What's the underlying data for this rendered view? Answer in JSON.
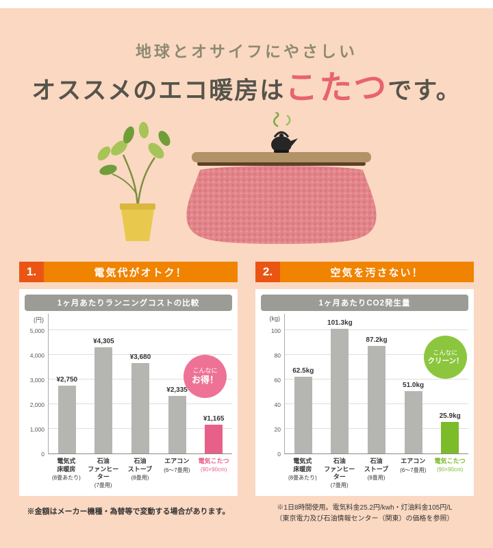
{
  "header": {
    "subtitle": "地球とオサイフにやさしい",
    "title_prefix": "オススメのエコ暖房は",
    "title_accent": "こたつ",
    "title_suffix": "です。"
  },
  "sections": [
    {
      "number": "1.",
      "title": "電気代がオトク！"
    },
    {
      "number": "2.",
      "title": "空気を汚さない！"
    }
  ],
  "colors": {
    "background": "#fbd8c2",
    "section_bar_orange": "#f08300",
    "section_number_red": "#ea5514",
    "title_accent_pink": "#e8636f",
    "chart_header_gray": "#9c9c96"
  },
  "chart_data": [
    {
      "type": "bar",
      "title": "1ヶ月あたりランニングコストの比較",
      "unit": "(円)",
      "ylim": [
        0,
        5000
      ],
      "yticks": [
        0,
        1000,
        2000,
        3000,
        4000,
        5000
      ],
      "ytick_labels": [
        "0",
        "1,000",
        "2,000",
        "3,000",
        "4,000",
        "5,000"
      ],
      "categories": [
        "電気式床暖房",
        "石油ファンヒーター",
        "石油ストーブ",
        "エアコン",
        "電気こたつ"
      ],
      "category_lines": [
        [
          "電気式",
          "床暖房"
        ],
        [
          "石油",
          "ファンヒーター"
        ],
        [
          "石油",
          "ストーブ"
        ],
        [
          "エアコン"
        ],
        [
          "電気こたつ"
        ]
      ],
      "sublabels": [
        "(8畳あたり)",
        "(7畳用)",
        "(8畳用)",
        "(6〜7畳用)",
        "(90×90cm)"
      ],
      "values": [
        2750,
        4305,
        3680,
        2335,
        1165
      ],
      "value_labels": [
        "¥2,750",
        "¥4,305",
        "¥3,680",
        "¥2,335",
        "¥1,165"
      ],
      "bar_color": "#b5b5b2",
      "highlight_index": 4,
      "highlight_color": "#e7608a",
      "badge": {
        "line1": "こんなに",
        "line2": "お得！",
        "color": "#ee7296"
      },
      "legend_position": "none",
      "grid": true
    },
    {
      "type": "bar",
      "title": "1ヶ月あたりCO2発生量",
      "unit": "(kg)",
      "ylim": [
        0,
        100
      ],
      "yticks": [
        0,
        20,
        40,
        60,
        80,
        100
      ],
      "ytick_labels": [
        "0",
        "20",
        "40",
        "60",
        "80",
        "100"
      ],
      "categories": [
        "電気式床暖房",
        "石油ファンヒーター",
        "石油ストーブ",
        "エアコン",
        "電気こたつ"
      ],
      "category_lines": [
        [
          "電気式",
          "床暖房"
        ],
        [
          "石油",
          "ファンヒーター"
        ],
        [
          "石油",
          "ストーブ"
        ],
        [
          "エアコン"
        ],
        [
          "電気こたつ"
        ]
      ],
      "sublabels": [
        "(8畳あたり)",
        "(7畳用)",
        "(8畳用)",
        "(6〜7畳用)",
        "(90×90cm)"
      ],
      "values": [
        62.5,
        101.3,
        87.2,
        51.0,
        25.9
      ],
      "value_labels": [
        "62.5kg",
        "101.3kg",
        "87.2kg",
        "51.0kg",
        "25.9kg"
      ],
      "bar_color": "#b5b5b2",
      "highlight_index": 4,
      "highlight_color": "#7cbb2a",
      "badge": {
        "line1": "こんなに",
        "line2": "クリーン！",
        "color": "#8cc63f"
      },
      "legend_position": "none",
      "grid": true
    }
  ],
  "footnotes": {
    "left": "※金額はメーカー機種・為替等で変動する場合があります。",
    "right_line1": "※1日8時間使用。電気料金25.2円/kwh・灯油料金105円/L",
    "right_line2": "（東京電力及び石油情報センター（関東）の価格を参照）"
  }
}
